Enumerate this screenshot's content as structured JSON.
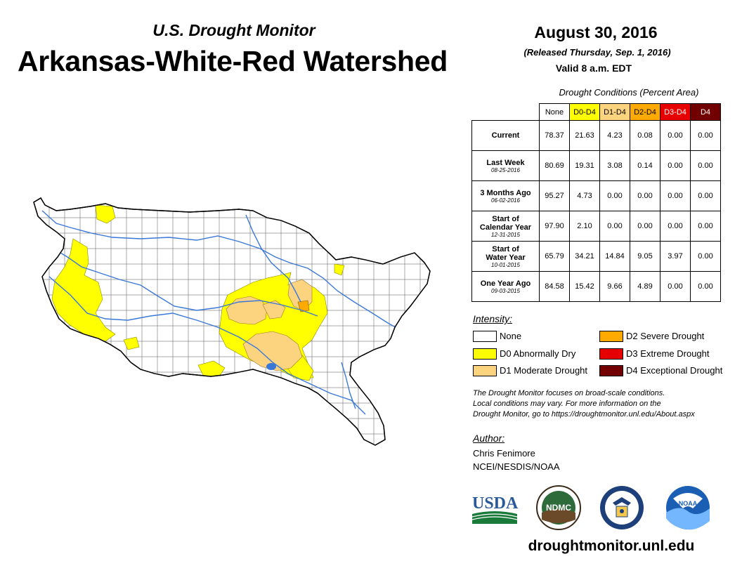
{
  "header": {
    "subtitle": "U.S. Drought Monitor",
    "title": "Arkansas-White-Red Watershed",
    "date": "August 30, 2016",
    "released": "(Released Thursday, Sep. 1, 2016)",
    "valid": "Valid 8 a.m. EDT"
  },
  "conditions": {
    "title": "Drought Conditions (Percent Area)",
    "columns": [
      "None",
      "D0-D4",
      "D1-D4",
      "D2-D4",
      "D3-D4",
      "D4"
    ],
    "column_colors": [
      "#ffffff",
      "#ffff00",
      "#fcd37f",
      "#ffaa00",
      "#e60000",
      "#730000"
    ],
    "rows": [
      {
        "label": "Current",
        "label2": "",
        "date": "",
        "values": [
          "78.37",
          "21.63",
          "4.23",
          "0.08",
          "0.00",
          "0.00"
        ]
      },
      {
        "label": "Last Week",
        "label2": "",
        "date": "08-25-2016",
        "values": [
          "80.69",
          "19.31",
          "3.08",
          "0.14",
          "0.00",
          "0.00"
        ]
      },
      {
        "label": "3 Months Ago",
        "label2": "",
        "date": "06-02-2016",
        "values": [
          "95.27",
          "4.73",
          "0.00",
          "0.00",
          "0.00",
          "0.00"
        ]
      },
      {
        "label": "Start of",
        "label2": "Calendar Year",
        "date": "12-31-2015",
        "values": [
          "97.90",
          "2.10",
          "0.00",
          "0.00",
          "0.00",
          "0.00"
        ]
      },
      {
        "label": "Start of",
        "label2": "Water Year",
        "date": "10-01-2015",
        "values": [
          "65.79",
          "34.21",
          "14.84",
          "9.05",
          "3.97",
          "0.00"
        ]
      },
      {
        "label": "One Year Ago",
        "label2": "",
        "date": "09-03-2015",
        "values": [
          "84.58",
          "15.42",
          "9.66",
          "4.89",
          "0.00",
          "0.00"
        ]
      }
    ]
  },
  "legend": {
    "title": "Intensity:",
    "items": [
      {
        "label": "None",
        "color": "#ffffff"
      },
      {
        "label": "D0 Abnormally Dry",
        "color": "#ffff00"
      },
      {
        "label": "D1 Moderate Drought",
        "color": "#fcd37f"
      },
      {
        "label": "D2 Severe Drought",
        "color": "#ffaa00"
      },
      {
        "label": "D3 Extreme Drought",
        "color": "#e60000"
      },
      {
        "label": "D4 Exceptional Drought",
        "color": "#730000"
      }
    ]
  },
  "note": {
    "line1": "The Drought Monitor focuses on broad-scale conditions.",
    "line2": "Local conditions may vary. For more information on the",
    "line3": "Drought Monitor, go to https://droughtmonitor.unl.edu/About.aspx"
  },
  "author": {
    "title": "Author:",
    "name": "Chris Fenimore",
    "org": "NCEI/NESDIS/NOAA"
  },
  "logos": {
    "usda": "USDA",
    "ndmc": "NDMC",
    "noaa": "NOAA"
  },
  "website": "droughtmonitor.unl.edu"
}
